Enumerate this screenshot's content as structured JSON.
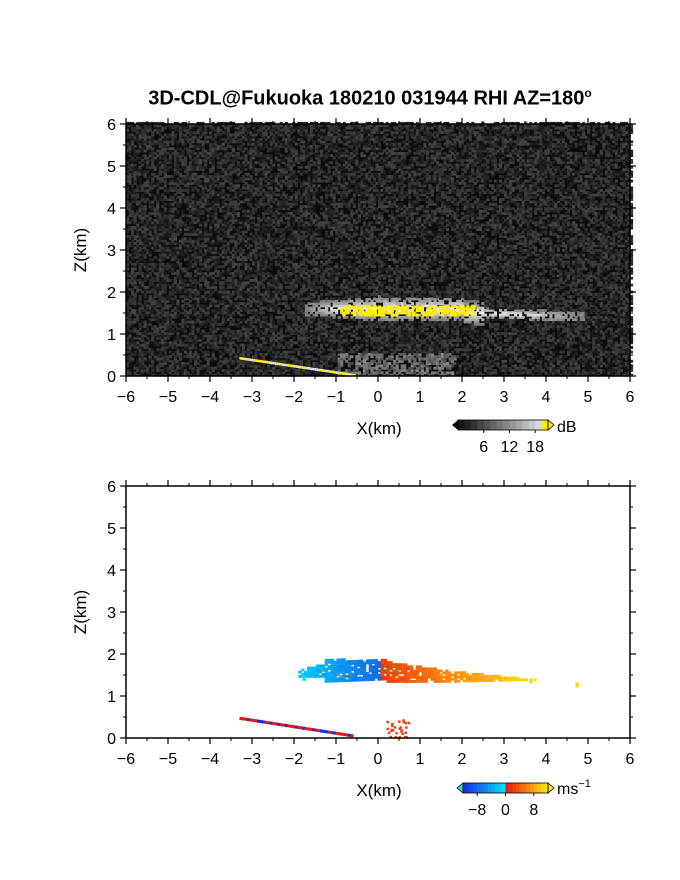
{
  "title": "3D-CDL@Fukuoka 180210 031944 RHI AZ=180",
  "title_degree": "o",
  "chart_data": [
    {
      "type": "heatmap",
      "panel": "reflectivity",
      "xlabel": "X(km)",
      "ylabel": "Z(km)",
      "xlim": [
        -6,
        6
      ],
      "ylim": [
        0,
        6
      ],
      "xticks": [
        "-6",
        "-5",
        "-4",
        "-3",
        "-2",
        "-1",
        "0",
        "1",
        "2",
        "3",
        "4",
        "5",
        "6"
      ],
      "yticks": [
        "0",
        "1",
        "2",
        "3",
        "4",
        "5",
        "6"
      ],
      "colorbar": {
        "unit": "dB",
        "ticks": [
          "6",
          "12",
          "18"
        ],
        "range": [
          0,
          21
        ]
      },
      "features": [
        {
          "kind": "layer",
          "x_range": [
            -1.8,
            4.9
          ],
          "z_center": 1.5,
          "max_db": 20
        },
        {
          "kind": "ground-clutter",
          "x_range": [
            -3.3,
            -0.6
          ],
          "z_range": [
            0.05,
            0.45
          ],
          "max_db": 20
        }
      ]
    },
    {
      "type": "heatmap",
      "panel": "doppler-velocity",
      "xlabel": "X(km)",
      "ylabel": "Z(km)",
      "xlim": [
        -6,
        6
      ],
      "ylim": [
        0,
        6
      ],
      "xticks": [
        "-6",
        "-5",
        "-4",
        "-3",
        "-2",
        "-1",
        "0",
        "1",
        "2",
        "3",
        "4",
        "5",
        "6"
      ],
      "yticks": [
        "0",
        "1",
        "2",
        "3",
        "4",
        "5",
        "6"
      ],
      "colorbar": {
        "unit": "ms",
        "unit_exp": "−1",
        "ticks": [
          "−8",
          "0",
          "8"
        ],
        "range": [
          -12,
          12
        ]
      },
      "features": [
        {
          "kind": "layer",
          "x_range": [
            -1.9,
            4.8
          ],
          "z_range": [
            1.3,
            1.85
          ],
          "velocity_range": [
            -10,
            10
          ]
        },
        {
          "kind": "ground-clutter",
          "x_range": [
            -3.3,
            -0.6
          ],
          "z_range": [
            0.05,
            0.5
          ]
        }
      ]
    }
  ]
}
